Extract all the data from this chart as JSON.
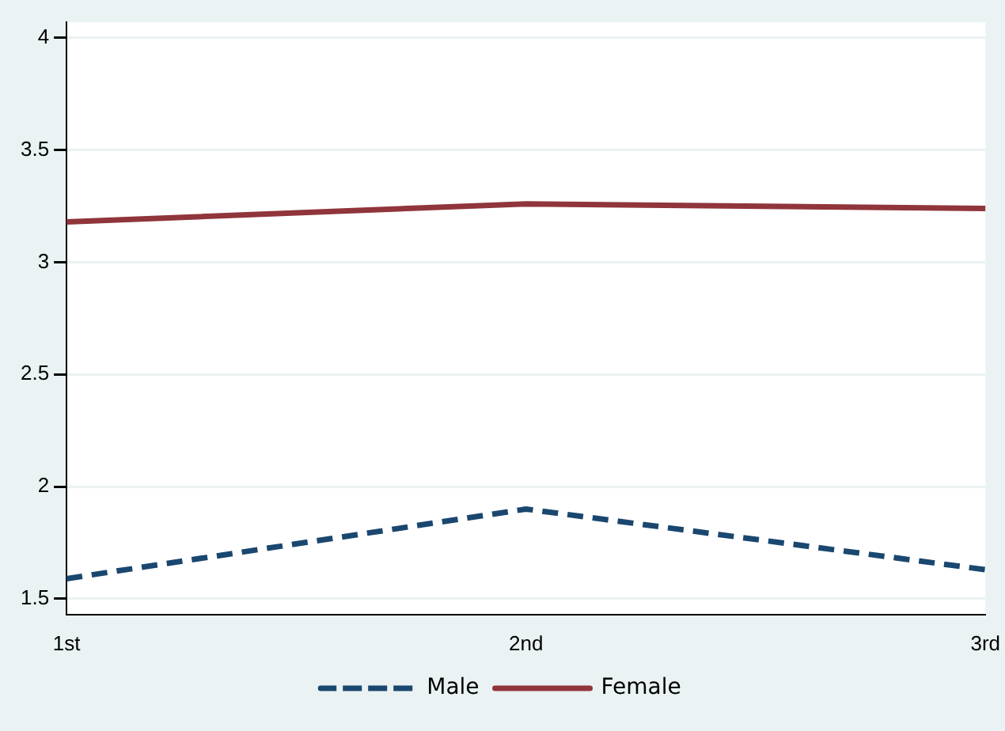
{
  "chart_data": {
    "type": "line",
    "categories": [
      "1st",
      "2nd",
      "3rd"
    ],
    "series": [
      {
        "name": "Male",
        "color": "#1a476f",
        "values": [
          1.59,
          1.9,
          1.63
        ],
        "line_style": "dashed"
      },
      {
        "name": "Female",
        "color": "#90353b",
        "values": [
          3.18,
          3.26,
          3.24
        ],
        "line_style": "solid"
      }
    ],
    "ylim": [
      1.43,
      4.07
    ],
    "yticks": [
      1.5,
      2,
      2.5,
      3,
      3.5,
      4
    ],
    "grid": "y",
    "legend": "bottom",
    "marker": "none"
  }
}
